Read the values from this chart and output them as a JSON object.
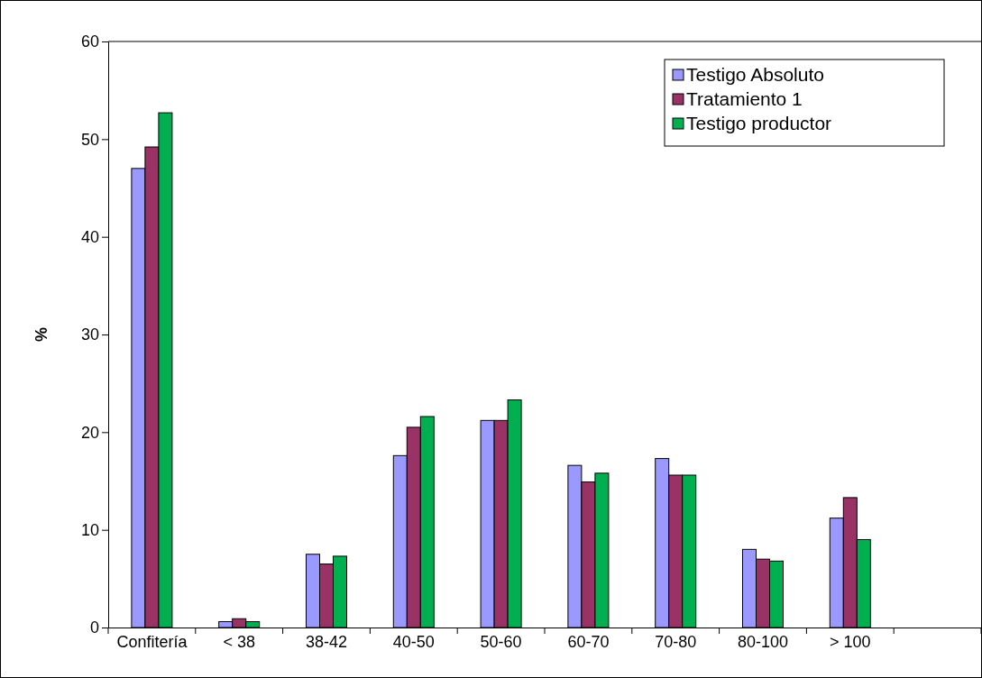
{
  "chart_data": {
    "type": "bar",
    "ylabel": "%",
    "categories": [
      "Confitería",
      "< 38",
      "38-42",
      "40-50",
      "50-60",
      "60-70",
      "70-80",
      "80-100",
      "> 100",
      null
    ],
    "series": [
      {
        "name": "Testigo Absoluto",
        "color": "#9999ff",
        "values": [
          47.0,
          0.6,
          7.5,
          17.6,
          21.2,
          16.6,
          17.3,
          8.0,
          11.2,
          null
        ]
      },
      {
        "name": "Tratamiento 1",
        "color": "#993366",
        "values": [
          49.2,
          0.9,
          6.5,
          20.5,
          21.2,
          14.9,
          15.6,
          7.0,
          13.3,
          null
        ]
      },
      {
        "name": "Testigo productor",
        "color": "#00b050",
        "values": [
          52.7,
          0.6,
          7.3,
          21.6,
          23.3,
          15.8,
          15.6,
          6.8,
          9.0,
          null
        ]
      }
    ],
    "ylim": [
      0,
      60
    ],
    "yticks": [
      0,
      10,
      20,
      30,
      40,
      50,
      60
    ],
    "grid": false,
    "legend": "top right"
  }
}
